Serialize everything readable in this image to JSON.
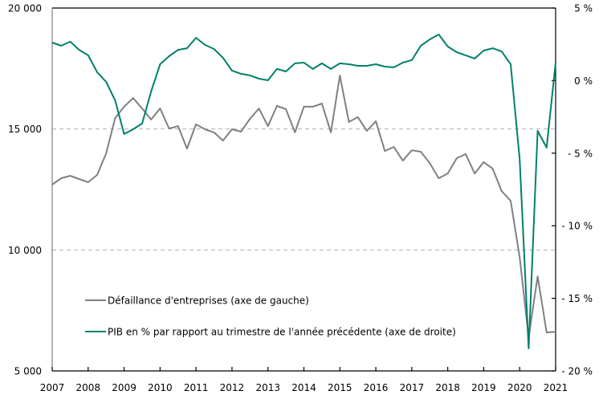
{
  "chart_data": {
    "type": "line",
    "title": "",
    "xlabel": "",
    "ylabel_left": "",
    "ylabel_right": "",
    "x_ticks": [
      "2007",
      "2008",
      "2009",
      "2010",
      "2011",
      "2012",
      "2013",
      "2014",
      "2015",
      "2016",
      "2017",
      "2018",
      "2019",
      "2020",
      "2021"
    ],
    "x_range": [
      2007,
      2021
    ],
    "x_step": 0.25,
    "y_left": {
      "range": [
        5000,
        20000
      ],
      "ticks": [
        5000,
        10000,
        15000,
        20000
      ],
      "tick_labels": [
        "5 000",
        "10 000",
        "15 000",
        "20 000"
      ]
    },
    "y_right": {
      "range": [
        -20,
        5
      ],
      "ticks": [
        -20,
        -15,
        -10,
        -5,
        0,
        5
      ],
      "tick_labels": [
        "- 20 %",
        "- 15 %",
        "- 10 %",
        "- 5 %",
        "0 %",
        "5 %"
      ]
    },
    "gridlines": {
      "axis": "left",
      "values": [
        10000,
        15000
      ],
      "style": "dashed"
    },
    "legend": {
      "placement": "bottom-left"
    },
    "series": [
      {
        "name": "Défaillance d'entreprises (axe de gauche)",
        "axis": "left",
        "color": "#808080",
        "values": [
          12700,
          12965,
          13065,
          12930,
          12800,
          13100,
          13990,
          15450,
          15920,
          16280,
          15850,
          15390,
          15850,
          15020,
          15120,
          14190,
          15190,
          14990,
          14860,
          14520,
          14990,
          14890,
          15420,
          15850,
          15120,
          15950,
          15820,
          14860,
          15920,
          15920,
          16050,
          14860,
          17210,
          15290,
          15490,
          14920,
          15320,
          14090,
          14260,
          13690,
          14120,
          14060,
          13590,
          12960,
          13160,
          13790,
          13960,
          13160,
          13630,
          13360,
          12430,
          12030,
          9710,
          6390,
          8910,
          6590,
          6620
        ]
      },
      {
        "name": "PIB en % par rapport au trimestre de l'année précédente (axe de droite)",
        "axis": "right",
        "color": "#00806a",
        "values": [
          2.62,
          2.4,
          2.68,
          2.12,
          1.74,
          0.58,
          -0.09,
          -1.36,
          -3.68,
          -3.35,
          -2.96,
          -0.75,
          1.13,
          1.68,
          2.12,
          2.23,
          2.95,
          2.46,
          2.18,
          1.57,
          0.69,
          0.47,
          0.36,
          0.13,
          0.02,
          0.8,
          0.63,
          1.19,
          1.24,
          0.8,
          1.19,
          0.8,
          1.19,
          1.13,
          1.02,
          1.02,
          1.13,
          0.96,
          0.91,
          1.24,
          1.41,
          2.4,
          2.84,
          3.18,
          2.35,
          1.96,
          1.74,
          1.52,
          2.07,
          2.23,
          2.01,
          1.13,
          -5.4,
          -18.45,
          -3.46,
          -4.62,
          1.24
        ]
      }
    ]
  }
}
